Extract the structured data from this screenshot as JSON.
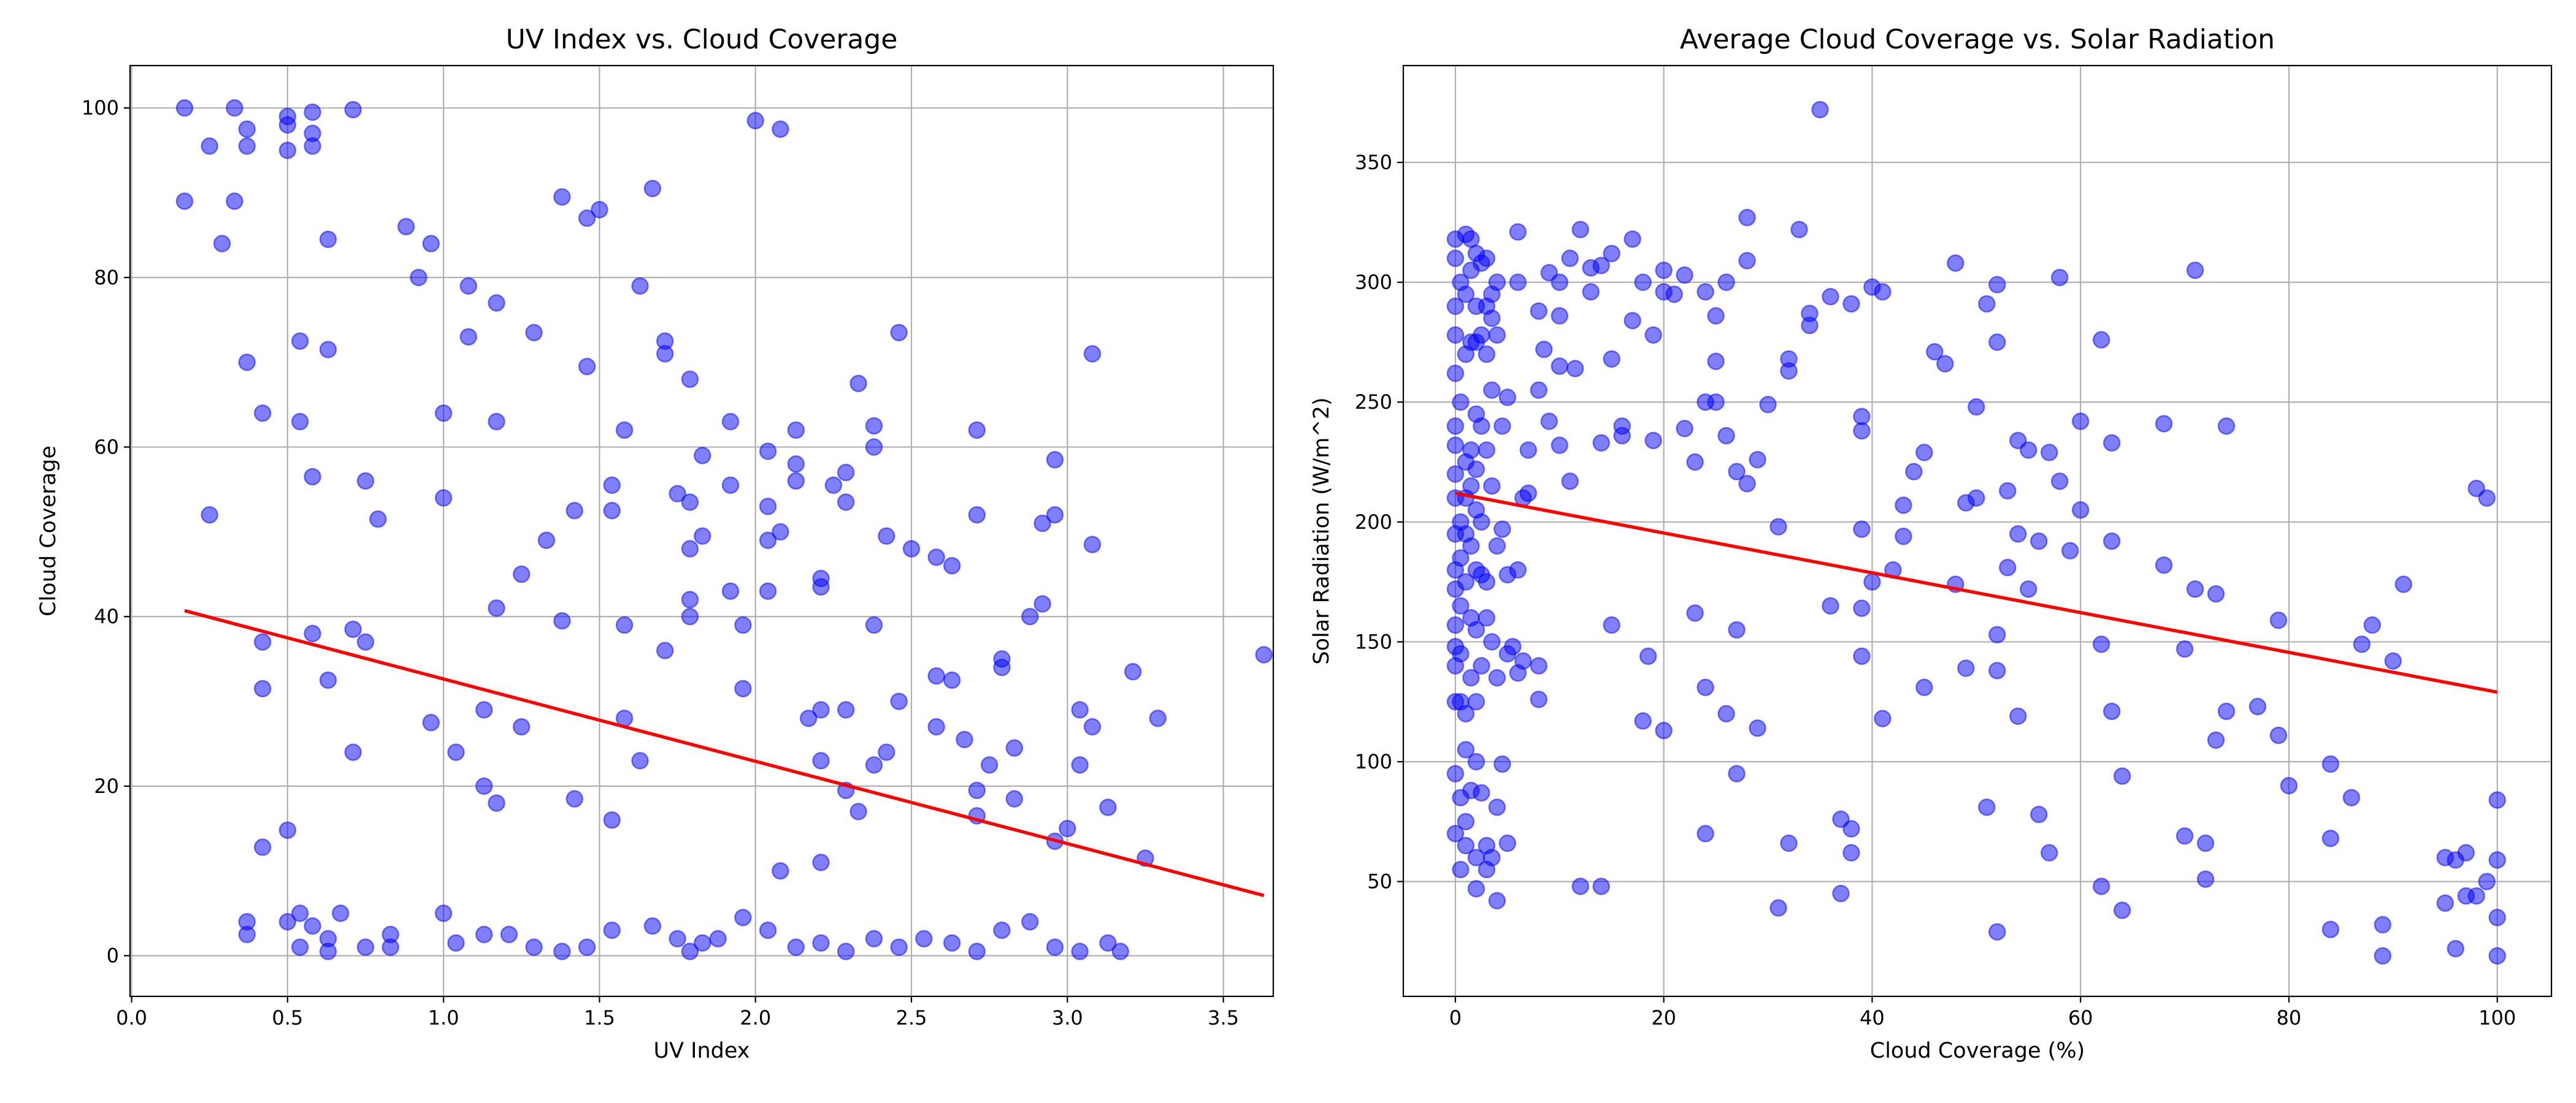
{
  "chart_data": [
    {
      "type": "scatter",
      "title": "UV Index vs. Cloud Coverage",
      "xlabel": "UV Index",
      "ylabel": "Cloud Coverage",
      "xlim": [
        -0.005,
        3.66
      ],
      "ylim": [
        -4.8,
        105
      ],
      "xticks": [
        {
          "value": 0,
          "label": "0.0"
        },
        0.5,
        {
          "value": 1,
          "label": "1.0"
        },
        1.5,
        {
          "value": 2,
          "label": "2.0"
        },
        2.5,
        {
          "value": 3,
          "label": "3.0"
        },
        3.5
      ],
      "yticks": [
        0,
        20,
        40,
        60,
        80,
        100
      ],
      "grid": true,
      "series": [
        {
          "color": "#0000ff",
          "alpha": 0.5,
          "x": [
            0.17,
            0.17,
            0.25,
            0.25,
            0.29,
            0.33,
            0.33,
            0.37,
            0.37,
            0.37,
            0.37,
            0.37,
            0.42,
            0.42,
            0.42,
            0.42,
            0.5,
            0.5,
            0.5,
            0.5,
            0.5,
            0.54,
            0.54,
            0.54,
            0.54,
            0.58,
            0.58,
            0.58,
            0.58,
            0.58,
            0.58,
            0.63,
            0.63,
            0.63,
            0.63,
            0.67,
            0.71,
            0.71,
            0.71,
            0.75,
            0.75,
            0.79,
            0.83,
            0.88,
            0.92,
            0.96,
            0.96,
            1.0,
            1.0,
            1.0,
            1.04,
            1.08,
            1.08,
            1.13,
            1.13,
            1.17,
            1.17,
            1.17,
            1.17,
            1.25,
            1.25,
            1.29,
            1.33,
            1.38,
            1.38,
            1.42,
            1.42,
            1.46,
            1.46,
            1.5,
            1.54,
            1.54,
            1.54,
            1.58,
            1.58,
            1.58,
            1.63,
            1.63,
            1.67,
            1.71,
            1.71,
            1.71,
            1.75,
            1.79,
            1.79,
            1.79,
            1.79,
            1.79,
            1.83,
            1.83,
            1.92,
            1.92,
            1.92,
            1.96,
            1.96,
            2.0,
            2.04,
            2.04,
            2.04,
            2.04,
            2.08,
            2.08,
            2.08,
            2.13,
            2.13,
            2.13,
            2.17,
            2.21,
            2.21,
            2.21,
            2.21,
            2.21,
            2.25,
            2.29,
            2.29,
            2.29,
            2.29,
            2.33,
            2.33,
            2.38,
            2.38,
            2.38,
            2.38,
            2.42,
            2.42,
            2.46,
            2.46,
            2.5,
            2.58,
            2.58,
            2.58,
            2.63,
            2.63,
            2.67,
            2.71,
            2.71,
            2.71,
            2.71,
            2.75,
            2.79,
            2.79,
            2.83,
            2.83,
            2.88,
            2.92,
            2.92,
            2.96,
            2.96,
            2.96,
            3.0,
            3.04,
            3.04,
            3.08,
            3.08,
            3.08,
            3.13,
            3.21,
            3.25,
            3.29,
            3.63,
            0.63,
            0.75,
            0.83,
            1.04,
            1.13,
            1.21,
            1.29,
            1.38,
            1.46,
            1.54,
            1.67,
            1.75,
            1.79,
            1.83,
            1.88,
            1.96,
            2.04,
            2.13,
            2.21,
            2.29,
            2.38,
            2.46,
            2.54,
            2.63,
            2.71,
            2.79,
            2.88,
            2.96,
            3.04,
            3.13,
            3.17
          ],
          "values": [
            100,
            89,
            95.5,
            52,
            84,
            100,
            89,
            97.5,
            95.5,
            70,
            4,
            2.5,
            64,
            37,
            31.5,
            12.8,
            98,
            95,
            99,
            14.8,
            4,
            72.5,
            63,
            5,
            1,
            99.5,
            97,
            95.5,
            56.5,
            38,
            3.5,
            84.5,
            71.5,
            32.5,
            2,
            5,
            99.8,
            38.5,
            24,
            56,
            37,
            51.5,
            2.5,
            86,
            80,
            84,
            27.5,
            64,
            54,
            5,
            24,
            79,
            73,
            29,
            20,
            77,
            63,
            41,
            18,
            45,
            27,
            73.5,
            49,
            89.5,
            39.5,
            52.5,
            18.5,
            87,
            69.5,
            88,
            55.5,
            52.5,
            16,
            62,
            39,
            28,
            79,
            23,
            90.5,
            72.5,
            71,
            36,
            54.5,
            68,
            53.5,
            48,
            42,
            40,
            59,
            49.5,
            63,
            55.5,
            43,
            39,
            31.5,
            98.5,
            59.5,
            53,
            49,
            43,
            97.5,
            50,
            10,
            62,
            58,
            56,
            28,
            44.5,
            43.5,
            29,
            23,
            11,
            55.5,
            57,
            53.5,
            29,
            19.5,
            67.5,
            17,
            62.5,
            60,
            39,
            22.5,
            49.5,
            24,
            73.5,
            30,
            48,
            47,
            33,
            27,
            46,
            32.5,
            25.5,
            62,
            52,
            19.5,
            16.5,
            22.5,
            35,
            34,
            24.5,
            18.5,
            40,
            51,
            41.5,
            58.5,
            52,
            13.5,
            15,
            29,
            22.5,
            71,
            48.5,
            27,
            17.5,
            33.5,
            11.5,
            28,
            35.5,
            0.5,
            1,
            1,
            1.5,
            2.5,
            2.5,
            1,
            0.5,
            1,
            3,
            3.5,
            2,
            0.5,
            1.5,
            2,
            4.5,
            3,
            1,
            1.5,
            0.5,
            2,
            1,
            2,
            1.5,
            0.5,
            3,
            4,
            1,
            0.5,
            1.5,
            0.5
          ]
        }
      ],
      "trend": {
        "color": "#ff0000",
        "x": [
          0.17,
          3.63
        ],
        "values": [
          40.7,
          7.1
        ]
      }
    },
    {
      "type": "scatter",
      "title": "Average Cloud Coverage vs. Solar Radiation",
      "xlabel": "Cloud Coverage (%)",
      "ylabel": "Solar Radiation (W/m^2)",
      "xlim": [
        -5,
        105.2
      ],
      "ylim": [
        2.1,
        390.4
      ],
      "xticks": [
        0,
        20,
        40,
        60,
        80,
        100
      ],
      "yticks": [
        50,
        100,
        150,
        200,
        250,
        300,
        350
      ],
      "grid": true,
      "series": [
        {
          "color": "#0000ff",
          "alpha": 0.5,
          "x": [
            0,
            0,
            0,
            0,
            0,
            0,
            0,
            0,
            0,
            0,
            0,
            0,
            0,
            0,
            0,
            0,
            0,
            0,
            0.5,
            0.5,
            0.5,
            0.5,
            0.5,
            0.5,
            0.5,
            0.5,
            0.5,
            1,
            1,
            1,
            1,
            1,
            1,
            1,
            1,
            1,
            1,
            1,
            1.5,
            1.5,
            1.5,
            1.5,
            1.5,
            1.5,
            1.5,
            1.5,
            1.5,
            2,
            2,
            2,
            2,
            2,
            2,
            2,
            2,
            2,
            2,
            2,
            2,
            2.5,
            2.5,
            2.5,
            2.5,
            2.5,
            2.5,
            2.5,
            3,
            3,
            3,
            3,
            3,
            3,
            3,
            3,
            3.5,
            3.5,
            3.5,
            3.5,
            3.5,
            3.5,
            4,
            4,
            4,
            4,
            4,
            4,
            4.5,
            4.5,
            4.5,
            5,
            5,
            5,
            5,
            5.5,
            6,
            6,
            6,
            6,
            6.5,
            6.5,
            7,
            7,
            8,
            8,
            8,
            8,
            8.5,
            9,
            9,
            10,
            10,
            10,
            10,
            11,
            11,
            11.5,
            12,
            12,
            13,
            13,
            14,
            14,
            14,
            15,
            15,
            15,
            16,
            16,
            17,
            17,
            18,
            18,
            18.5,
            19,
            19,
            20,
            20,
            20,
            21,
            22,
            22,
            23,
            23,
            24,
            24,
            24,
            24,
            25,
            25,
            25,
            26,
            26,
            26,
            27,
            27,
            27,
            28,
            28,
            28,
            29,
            29,
            30,
            31,
            31,
            32,
            32,
            32,
            33,
            34,
            34,
            35,
            36,
            36,
            37,
            37,
            38,
            38,
            38,
            39,
            39,
            39,
            39,
            39,
            40,
            40,
            41,
            41,
            42,
            43,
            43,
            44,
            45,
            45,
            46,
            47,
            48,
            48,
            49,
            49,
            50,
            50,
            51,
            51,
            52,
            52,
            52,
            52,
            52,
            53,
            53,
            54,
            54,
            54,
            55,
            55,
            56,
            56,
            57,
            57,
            58,
            58,
            59,
            60,
            60,
            62,
            62,
            62,
            63,
            63,
            63,
            64,
            64,
            68,
            68,
            70,
            70,
            71,
            71,
            72,
            72,
            73,
            73,
            74,
            74,
            77,
            79,
            79,
            80,
            84,
            84,
            84,
            86,
            87,
            88,
            89,
            89,
            90,
            91,
            95,
            95,
            96,
            96,
            97,
            97,
            98,
            98,
            99,
            99,
            100,
            100,
            100,
            100
          ],
          "values": [
            318,
            310,
            290,
            278,
            262,
            240,
            232,
            220,
            210,
            195,
            180,
            172,
            157,
            148,
            140,
            125,
            95,
            70,
            300,
            250,
            200,
            185,
            165,
            145,
            125,
            85,
            55,
            320,
            295,
            270,
            225,
            210,
            195,
            175,
            120,
            105,
            75,
            65,
            318,
            305,
            275,
            230,
            215,
            190,
            160,
            135,
            88,
            312,
            290,
            275,
            245,
            222,
            205,
            180,
            155,
            125,
            100,
            60,
            47,
            308,
            278,
            240,
            200,
            178,
            140,
            87,
            310,
            290,
            270,
            230,
            175,
            160,
            65,
            55,
            295,
            285,
            255,
            215,
            150,
            60,
            300,
            278,
            190,
            135,
            81,
            42,
            240,
            197,
            99,
            252,
            178,
            145,
            66,
            148,
            321,
            300,
            180,
            137,
            210,
            142,
            230,
            212,
            288,
            255,
            126,
            140,
            272,
            304,
            242,
            300,
            286,
            265,
            232,
            310,
            217,
            264,
            322,
            48,
            306,
            296,
            307,
            233,
            48,
            312,
            268,
            157,
            240,
            236,
            318,
            284,
            300,
            117,
            144,
            278,
            234,
            305,
            296,
            113,
            295,
            303,
            239,
            225,
            162,
            296,
            250,
            131,
            70,
            286,
            267,
            250,
            300,
            236,
            120,
            221,
            155,
            95,
            327,
            309,
            216,
            226,
            114,
            249,
            198,
            39,
            268,
            263,
            66,
            322,
            287,
            282,
            372,
            294,
            165,
            76,
            45,
            291,
            62,
            72,
            244,
            238,
            197,
            164,
            144,
            298,
            175,
            118,
            296,
            180,
            207,
            194,
            221,
            229,
            131,
            271,
            266,
            174,
            308,
            208,
            139,
            248,
            210,
            291,
            81,
            275,
            299,
            153,
            138,
            29,
            213,
            181,
            234,
            195,
            119,
            230,
            172,
            192,
            78,
            229,
            62,
            217,
            302,
            188,
            242,
            205,
            276,
            149,
            48,
            233,
            192,
            121,
            94,
            38,
            241,
            182,
            147,
            69,
            305,
            172,
            66,
            51,
            170,
            109,
            121,
            240,
            123,
            159,
            111,
            90,
            99,
            68,
            30,
            85,
            149,
            157,
            32,
            19,
            142,
            174,
            60,
            41,
            22,
            59,
            62,
            44,
            44,
            214,
            210,
            50,
            84,
            59,
            35,
            19
          ]
        }
      ],
      "trend": {
        "color": "#ff0000",
        "x": [
          0,
          100
        ],
        "values": [
          212,
          129
        ]
      }
    }
  ]
}
